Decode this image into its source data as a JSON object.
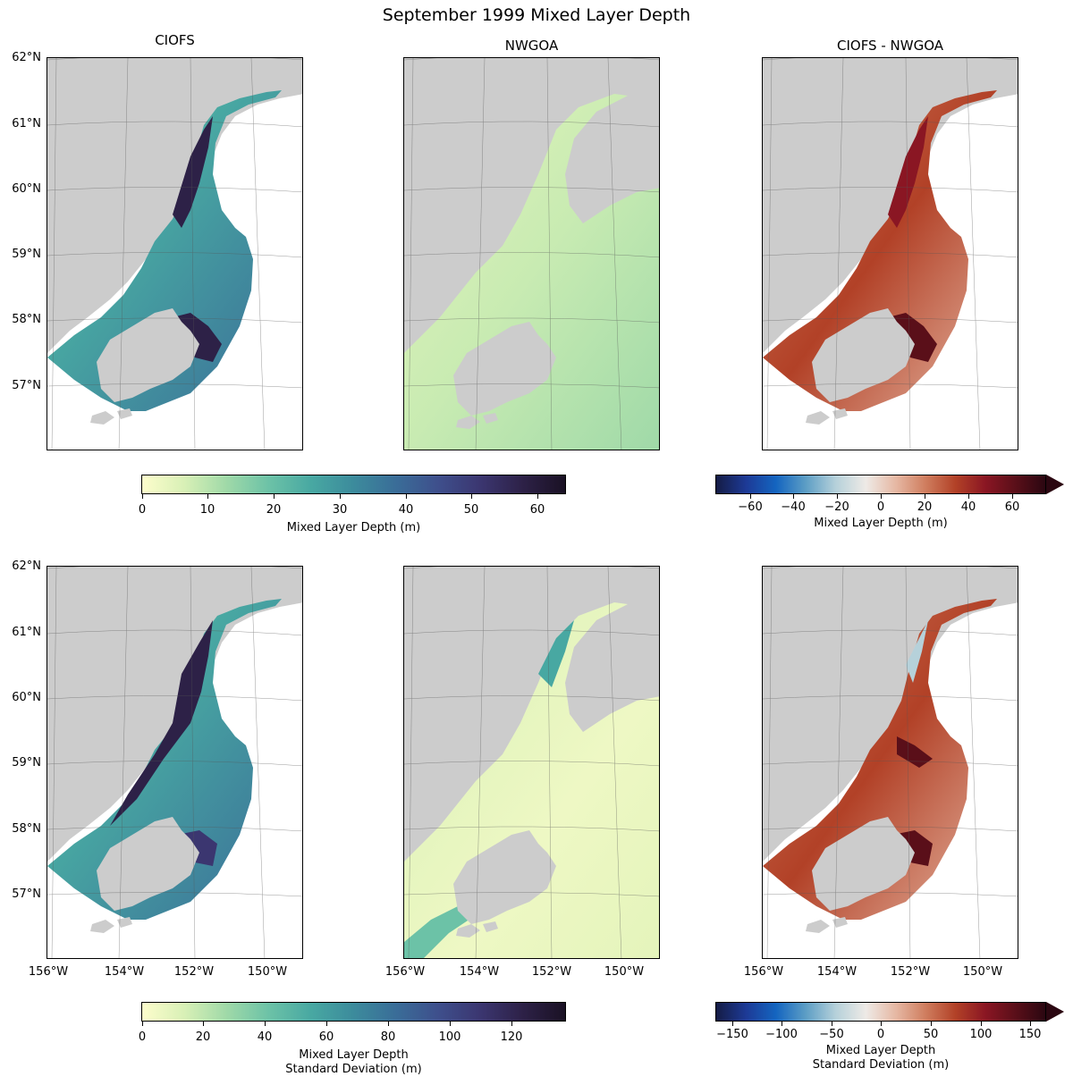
{
  "figure": {
    "title": "September 1999 Mixed Layer Depth"
  },
  "columns": {
    "ciofs": "CIOFS",
    "nwgoa": "NWGOA",
    "diff": "CIOFS - NWGOA"
  },
  "axes": {
    "lat_labels": [
      "62°N",
      "61°N",
      "60°N",
      "59°N",
      "58°N",
      "57°N"
    ],
    "lon_labels": [
      "156°W",
      "154°W",
      "152°W",
      "150°W"
    ]
  },
  "colorbars": {
    "top_seq": {
      "ticks": [
        "0",
        "10",
        "20",
        "30",
        "40",
        "50",
        "60"
      ],
      "label": "Mixed Layer Depth (m)"
    },
    "top_div": {
      "ticks": [
        "−60",
        "−40",
        "−20",
        "0",
        "20",
        "40",
        "60"
      ],
      "label": "Mixed Layer Depth (m)"
    },
    "bot_seq": {
      "ticks": [
        "0",
        "20",
        "40",
        "60",
        "80",
        "100",
        "120"
      ],
      "label_line1": "Mixed Layer Depth",
      "label_line2": "Standard Deviation (m)"
    },
    "bot_div": {
      "ticks": [
        "−150",
        "−100",
        "−50",
        "0",
        "50",
        "100",
        "150"
      ],
      "label_line1": "Mixed Layer Depth",
      "label_line2": "Standard Deviation (m)"
    }
  },
  "colors": {
    "land": "#cccccc",
    "ocean": "#ffffff",
    "seq_light": "#fdfdcc",
    "seq_mid": "#48a8a2",
    "seq_dark": "#1a1124",
    "div_neg": "#151c45",
    "div_zero": "#eeeae6",
    "div_pos": "#5a0f19"
  }
}
